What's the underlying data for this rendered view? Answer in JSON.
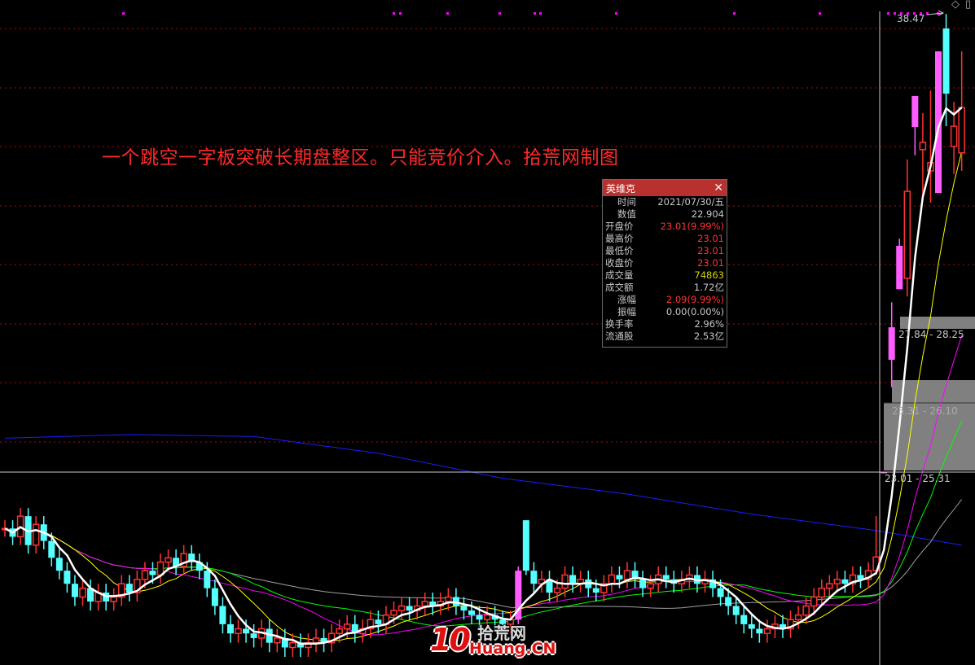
{
  "annotation": "一个跳空一字板突破长期盘整区。只能竞价介入。拾荒网制图",
  "tooltip": {
    "title": "英维克",
    "close_icon": "close-icon",
    "rows": [
      {
        "label": "时间",
        "value": "2021/07/30/五",
        "color": "#c8c8c8"
      },
      {
        "label": "数值",
        "value": "22.904",
        "color": "#c8c8c8"
      },
      {
        "label": "开盘价",
        "value": "23.01(9.99%)",
        "color": "#ff3232"
      },
      {
        "label": "最高价",
        "value": "23.01",
        "color": "#ff3232"
      },
      {
        "label": "最低价",
        "value": "23.01",
        "color": "#ff3232"
      },
      {
        "label": "收盘价",
        "value": "23.01",
        "color": "#ff3232"
      },
      {
        "label": "成交量",
        "value": "74863",
        "color": "#d4d400"
      },
      {
        "label": "成交额",
        "value": "1.72亿",
        "color": "#c8c8c8"
      },
      {
        "label": "涨幅",
        "value": "2.09(9.99%)",
        "color": "#ff3232"
      },
      {
        "label": "振幅",
        "value": "0.00(0.00%)",
        "color": "#c8c8c8"
      },
      {
        "label": "换手率",
        "value": "2.96%",
        "color": "#c8c8c8"
      },
      {
        "label": "流通股",
        "value": "2.53亿",
        "color": "#c8c8c8"
      }
    ]
  },
  "top_icons": {
    "diamond": "diamond-icon",
    "panel": "panel-toggle-icon"
  },
  "watermark": {
    "number": "10",
    "cn": "拾荒网",
    "en": "Huang.CN"
  },
  "chart_data": {
    "type": "candlestick",
    "title": "",
    "y_scale": "log",
    "grid": true,
    "colors": {
      "up": "#ff3232",
      "down": "#54ffff",
      "highlight": "#ff5cff",
      "ma5": "#ffffff",
      "ma10": "#ffff00",
      "ma20": "#ff00ff",
      "ma30": "#00ff00",
      "ma60": "#a0a0a0",
      "ma_long": "#1c1cff"
    },
    "highest_label": "38.47",
    "crosshair_price": 23.01,
    "gap_zones": [
      {
        "label": "27.84 - 28.25",
        "low": 27.84,
        "high": 28.25
      },
      {
        "label": "25.31 - 26.10",
        "low": 25.31,
        "high": 26.1
      },
      {
        "label": "23.01 - 25.31",
        "low": 23.01,
        "high": 25.31
      }
    ],
    "candles": [
      21.6,
      21.4,
      21.9,
      21.2,
      21.7,
      21.3,
      20.9,
      20.6,
      20.3,
      20.0,
      20.2,
      19.9,
      20.1,
      19.9,
      20.0,
      20.3,
      20.1,
      20.4,
      20.6,
      20.5,
      20.8,
      20.9,
      20.7,
      21.0,
      20.8,
      20.6,
      20.2,
      19.8,
      19.4,
      19.2,
      19.3,
      19.2,
      19.1,
      19.3,
      19.0,
      19.1,
      18.9,
      19.0,
      18.9,
      19.0,
      19.1,
      19.0,
      19.2,
      19.3,
      19.4,
      19.2,
      19.3,
      19.5,
      19.4,
      19.6,
      19.7,
      19.8,
      19.7,
      19.8,
      19.9,
      19.8,
      19.9,
      20.0,
      19.8,
      19.7,
      19.6,
      19.5,
      19.6,
      19.5,
      19.4,
      19.5,
      [
        19.5,
        20.7,
        19.4,
        20.6
      ],
      [
        21.8,
        21.8,
        20.5,
        20.6
      ],
      20.3,
      20.4,
      20.1,
      20.2,
      20.5,
      20.3,
      20.4,
      20.2,
      20.1,
      20.3,
      20.5,
      20.4,
      20.6,
      20.4,
      20.2,
      20.3,
      20.5,
      20.4,
      20.3,
      20.4,
      20.5,
      20.3,
      20.4,
      20.2,
      20.0,
      19.8,
      19.6,
      19.4,
      19.3,
      19.2,
      19.3,
      19.4,
      19.3,
      19.5,
      19.6,
      19.8,
      20.0,
      20.2,
      20.3,
      20.4,
      20.3,
      20.5,
      20.4,
      20.6,
      [
        20.6,
        21.9,
        20.5,
        20.92
      ],
      [
        23.01,
        23.01,
        23.01,
        23.01
      ],
      [
        26.1,
        27.84,
        25.31,
        27.07
      ],
      [
        28.25,
        29.9,
        28.25,
        29.66
      ],
      [
        28.6,
        32.68,
        28.02,
        31.53
      ],
      [
        33.89,
        35.09,
        32.83,
        35.09
      ],
      [
        33.04,
        34.42,
        31.3,
        33.31
      ],
      [
        32.26,
        35.31,
        31.13,
        32.56
      ],
      [
        31.47,
        36.89,
        31.47,
        36.89
      ],
      [
        37.85,
        38.47,
        33.92,
        35.18
      ],
      [
        33.16,
        34.86,
        32.15,
        33.92
      ],
      [
        32.92,
        36.89,
        32.26,
        34.64
      ]
    ],
    "highlight_candles": [
      66,
      113,
      114,
      115,
      117,
      120
    ],
    "ma_long": [
      [
        0,
        23.9
      ],
      [
        16,
        24.0
      ],
      [
        32,
        23.95
      ],
      [
        48,
        23.5
      ],
      [
        64,
        22.85
      ],
      [
        80,
        22.45
      ],
      [
        96,
        21.95
      ],
      [
        112,
        21.55
      ],
      [
        123,
        21.2
      ]
    ]
  }
}
